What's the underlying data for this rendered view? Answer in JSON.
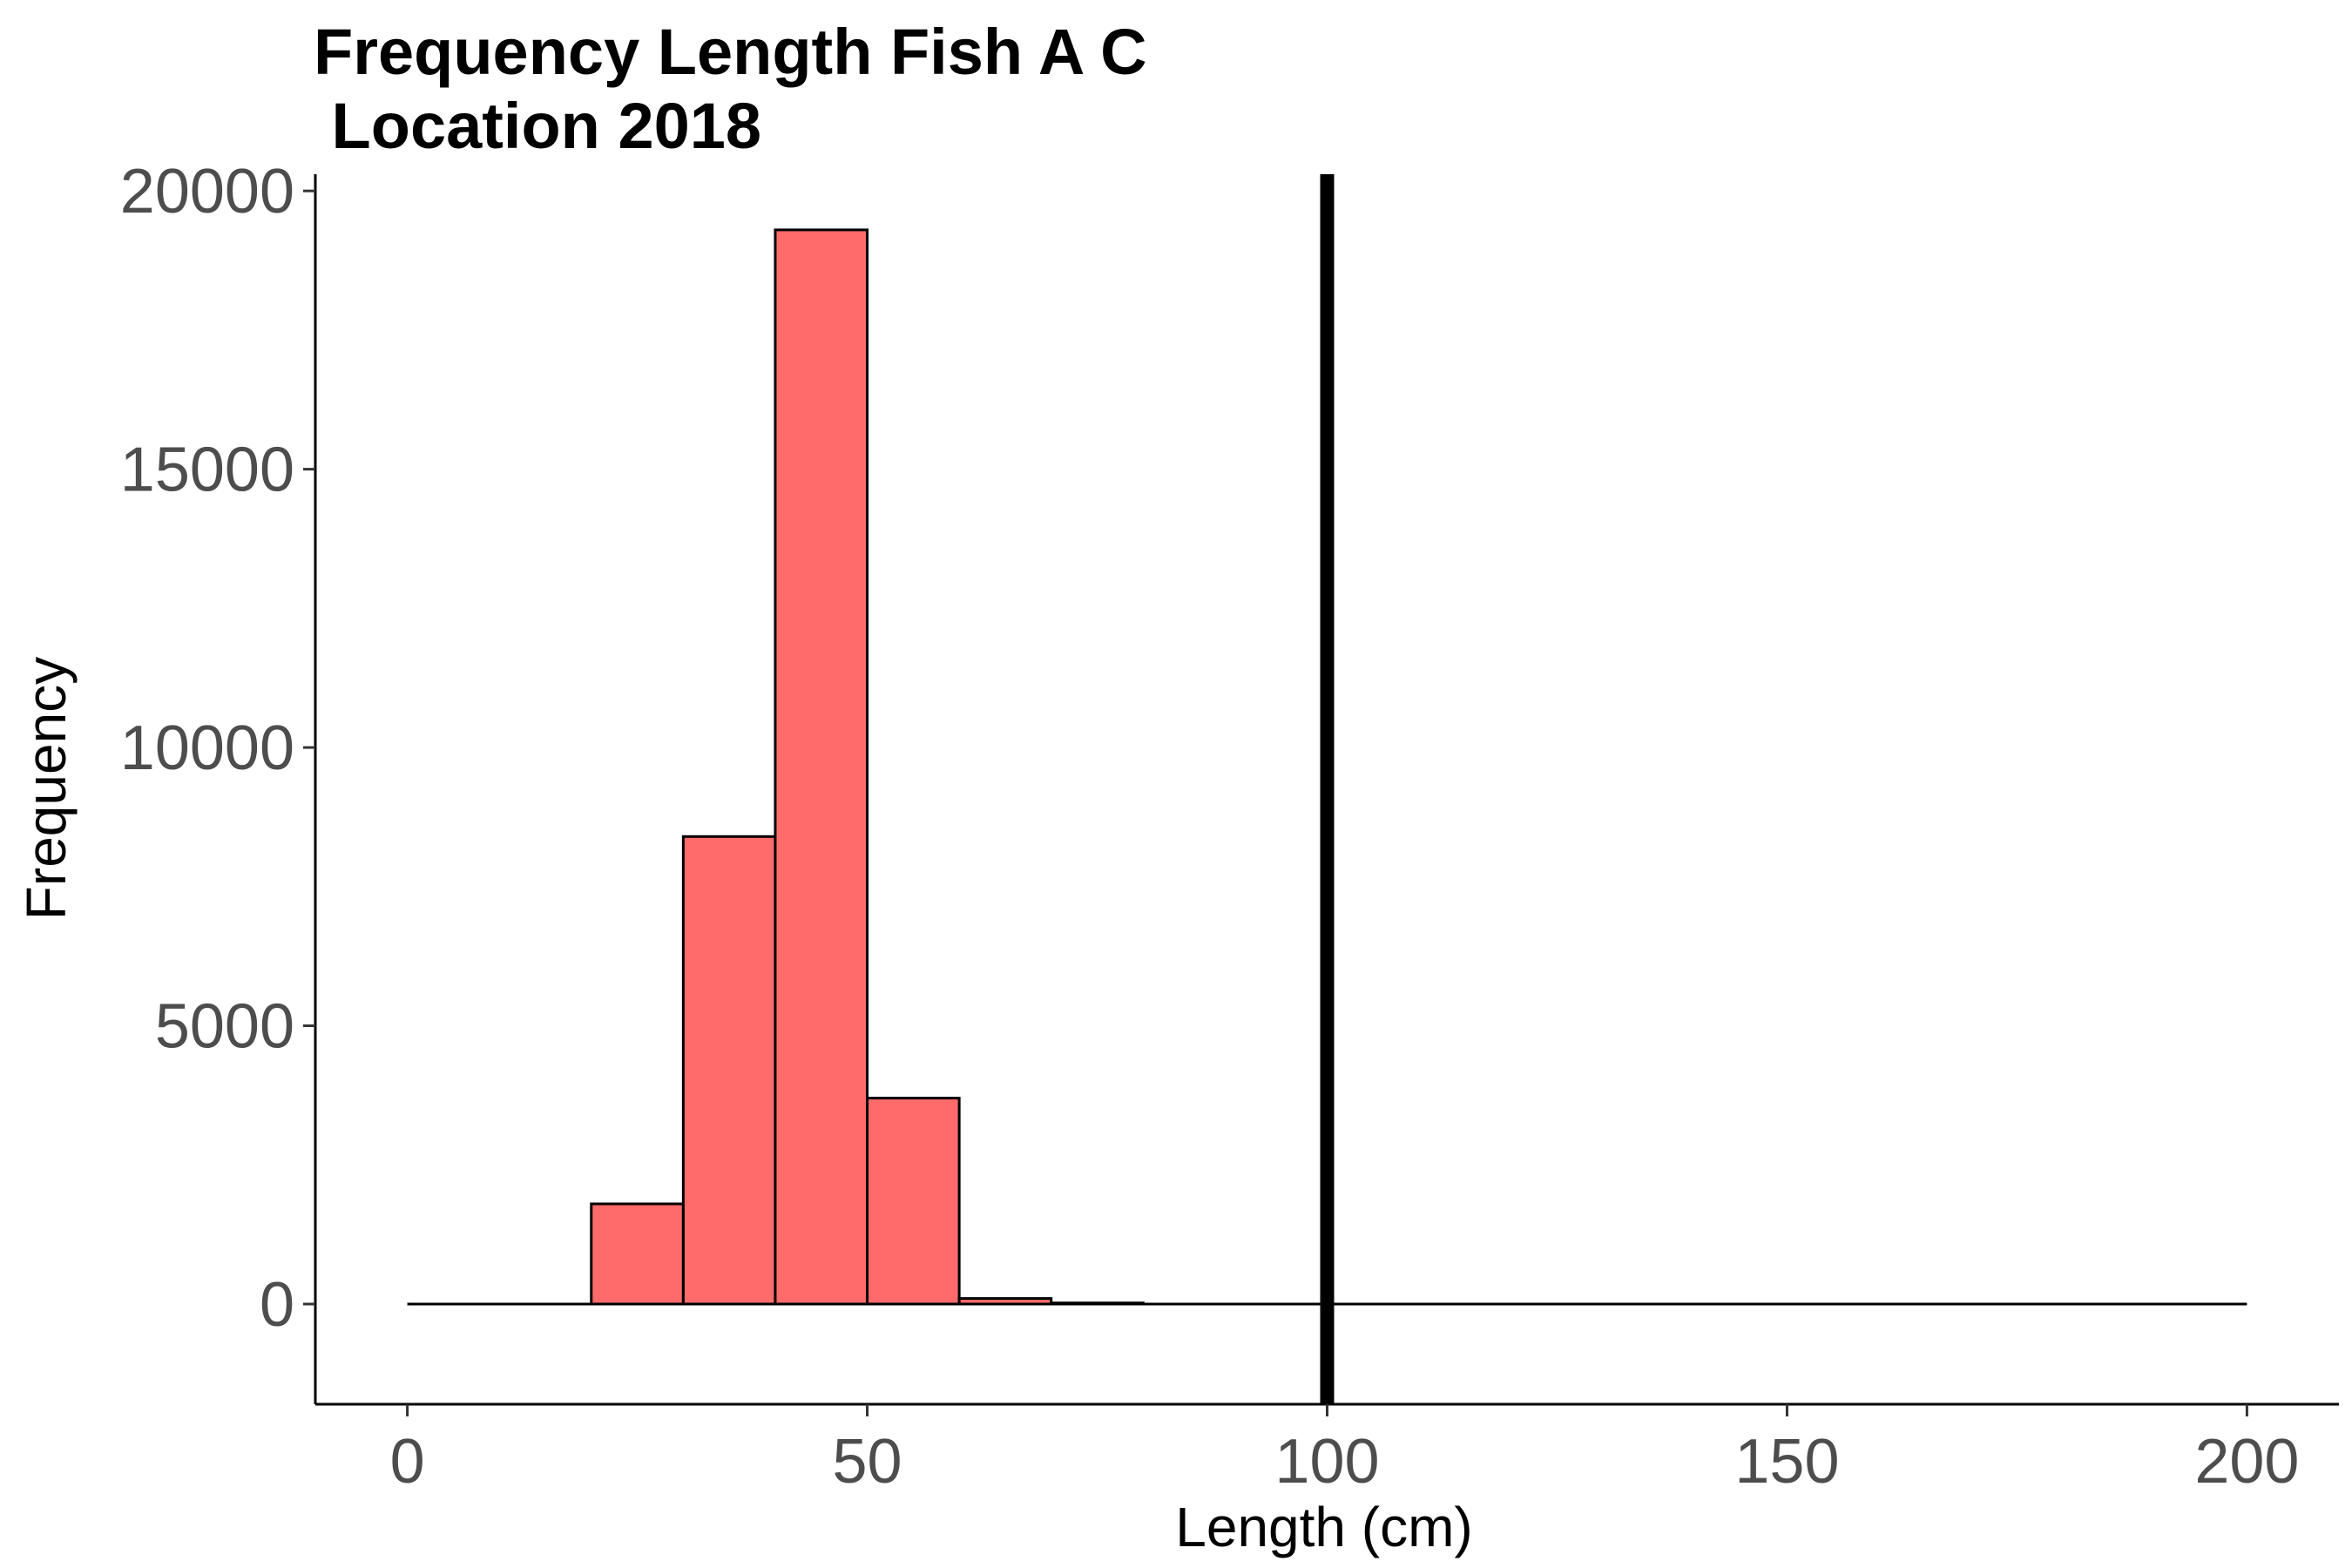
{
  "chart_data": {
    "type": "bar",
    "title_lines": [
      "Frequency Length Fish A C",
      " Location 2018"
    ],
    "xlabel": "Length (cm)",
    "ylabel": "Frequency",
    "xlim": [
      -10,
      210
    ],
    "ylim": [
      -1800,
      20300
    ],
    "x_ticks": [
      0,
      50,
      100,
      150,
      200
    ],
    "x_tick_labels": [
      "0",
      "50",
      "100",
      "150",
      "200"
    ],
    "y_ticks": [
      0,
      5000,
      10000,
      15000,
      20000
    ],
    "y_tick_labels": [
      "0",
      "5000",
      "10000",
      "15000",
      "20000"
    ],
    "bin_width": 10,
    "bins": [
      {
        "start": 0,
        "end": 10,
        "value": 0
      },
      {
        "start": 10,
        "end": 20,
        "value": 0
      },
      {
        "start": 20,
        "end": 30,
        "value": 1800
      },
      {
        "start": 30,
        "end": 40,
        "value": 8400
      },
      {
        "start": 40,
        "end": 50,
        "value": 19300
      },
      {
        "start": 50,
        "end": 60,
        "value": 3700
      },
      {
        "start": 60,
        "end": 70,
        "value": 100
      },
      {
        "start": 70,
        "end": 80,
        "value": 20
      },
      {
        "start": 80,
        "end": 90,
        "value": 0
      },
      {
        "start": 90,
        "end": 100,
        "value": 0
      },
      {
        "start": 100,
        "end": 110,
        "value": 0
      },
      {
        "start": 110,
        "end": 120,
        "value": 0
      },
      {
        "start": 120,
        "end": 130,
        "value": 0
      },
      {
        "start": 130,
        "end": 140,
        "value": 0
      },
      {
        "start": 140,
        "end": 150,
        "value": 0
      },
      {
        "start": 150,
        "end": 160,
        "value": 0
      },
      {
        "start": 160,
        "end": 170,
        "value": 0
      },
      {
        "start": 170,
        "end": 180,
        "value": 0
      },
      {
        "start": 180,
        "end": 190,
        "value": 0
      },
      {
        "start": 190,
        "end": 200,
        "value": 0
      }
    ],
    "reference_line": {
      "x": 100
    },
    "bar_fill": "#ff6b6b",
    "bar_stroke": "#000000",
    "grid": false,
    "legend": "none"
  }
}
